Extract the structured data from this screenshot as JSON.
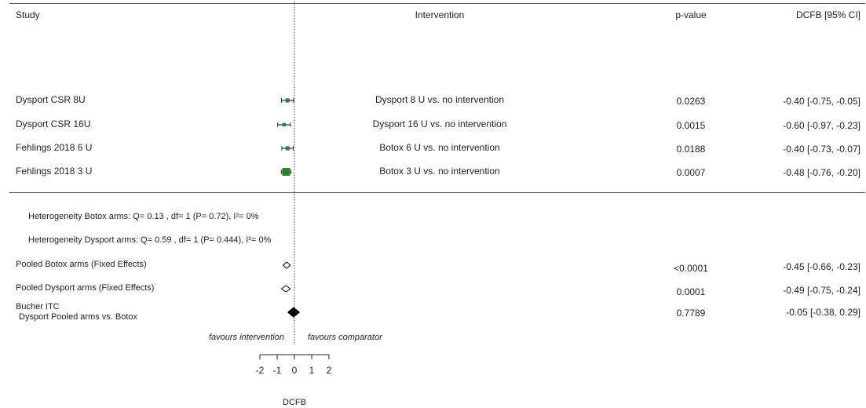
{
  "headers": {
    "study": "Study",
    "intervention": "Intervention",
    "pvalue": "p-value",
    "effect": "DCFB [95% CI]"
  },
  "rows": [
    {
      "study": "Dysport CSR 8U",
      "intervention": "Dysport 8 U vs. no intervention",
      "pvalue": "0.0263",
      "ci_text": "-0.40 [-0.75, -0.05]"
    },
    {
      "study": "Dysport CSR 16U",
      "intervention": "Dysport 16 U vs. no intervention",
      "pvalue": "0.0015",
      "ci_text": "-0.60 [-0.97, -0.23]"
    },
    {
      "study": "Fehlings 2018 6 U",
      "intervention": "Botox 6 U vs. no intervention",
      "pvalue": "0.0188",
      "ci_text": "-0.40 [-0.73, -0.07]"
    },
    {
      "study": "Fehlings 2018 3 U",
      "intervention": "Botox 3 U vs. no intervention",
      "pvalue": "0.0007",
      "ci_text": "-0.48 [-0.76, -0.20]"
    }
  ],
  "heterogeneity": [
    "Heterogeneity Botox arms: Q= 0.13 , df= 1 (P= 0.72), I²= 0%",
    "Heterogeneity Dysport arms: Q= 0.59 , df= 1 (P= 0.444), I²= 0%"
  ],
  "pooled": [
    {
      "label": "Pooled Botox arms (Fixed Effects)",
      "pvalue": "<0.0001",
      "ci_text": "-0.45 [-0.66, -0.23]"
    },
    {
      "label": "Pooled Dysport arms (Fixed Effects)",
      "pvalue": "0.0001",
      "ci_text": "-0.49 [-0.75, -0.24]"
    }
  ],
  "itc": {
    "label_line1": "Bucher ITC",
    "label_line2": "Dysport Pooled arms vs. Botox",
    "pvalue": "0.7789",
    "ci_text": "-0.05 [-0.38, 0.29]"
  },
  "favours": {
    "left": "favours intervention",
    "right": "favours comparator"
  },
  "chart_data": {
    "type": "forest",
    "xlabel": "DCFB",
    "xlim": [
      -2,
      2
    ],
    "ticks": [
      -2,
      -1,
      0,
      1,
      2
    ],
    "tick_labels": [
      "-2",
      "-1",
      "0",
      "1",
      "2"
    ],
    "null_line": 0,
    "studies": [
      {
        "name": "Dysport CSR 8U",
        "estimate": -0.4,
        "lower": -0.75,
        "upper": -0.05,
        "weight": 0.3
      },
      {
        "name": "Dysport CSR 16U",
        "estimate": -0.6,
        "lower": -0.97,
        "upper": -0.23,
        "weight": 0.2
      },
      {
        "name": "Fehlings 2018 6 U",
        "estimate": -0.4,
        "lower": -0.73,
        "upper": -0.07,
        "weight": 0.3
      },
      {
        "name": "Fehlings 2018 3 U",
        "estimate": -0.48,
        "lower": -0.76,
        "upper": -0.2,
        "weight": 1.0
      }
    ],
    "pooled": [
      {
        "name": "Pooled Botox arms (Fixed Effects)",
        "estimate": -0.45,
        "lower": -0.66,
        "upper": -0.23,
        "filled": false
      },
      {
        "name": "Pooled Dysport arms (Fixed Effects)",
        "estimate": -0.49,
        "lower": -0.75,
        "upper": -0.24,
        "filled": false
      },
      {
        "name": "Bucher ITC Dysport Pooled arms vs. Botox",
        "estimate": -0.05,
        "lower": -0.38,
        "upper": 0.29,
        "filled": true
      }
    ],
    "colors": {
      "study_marker": "#2e7d32",
      "ci_line": "#333333",
      "diamond": "#000000"
    }
  }
}
